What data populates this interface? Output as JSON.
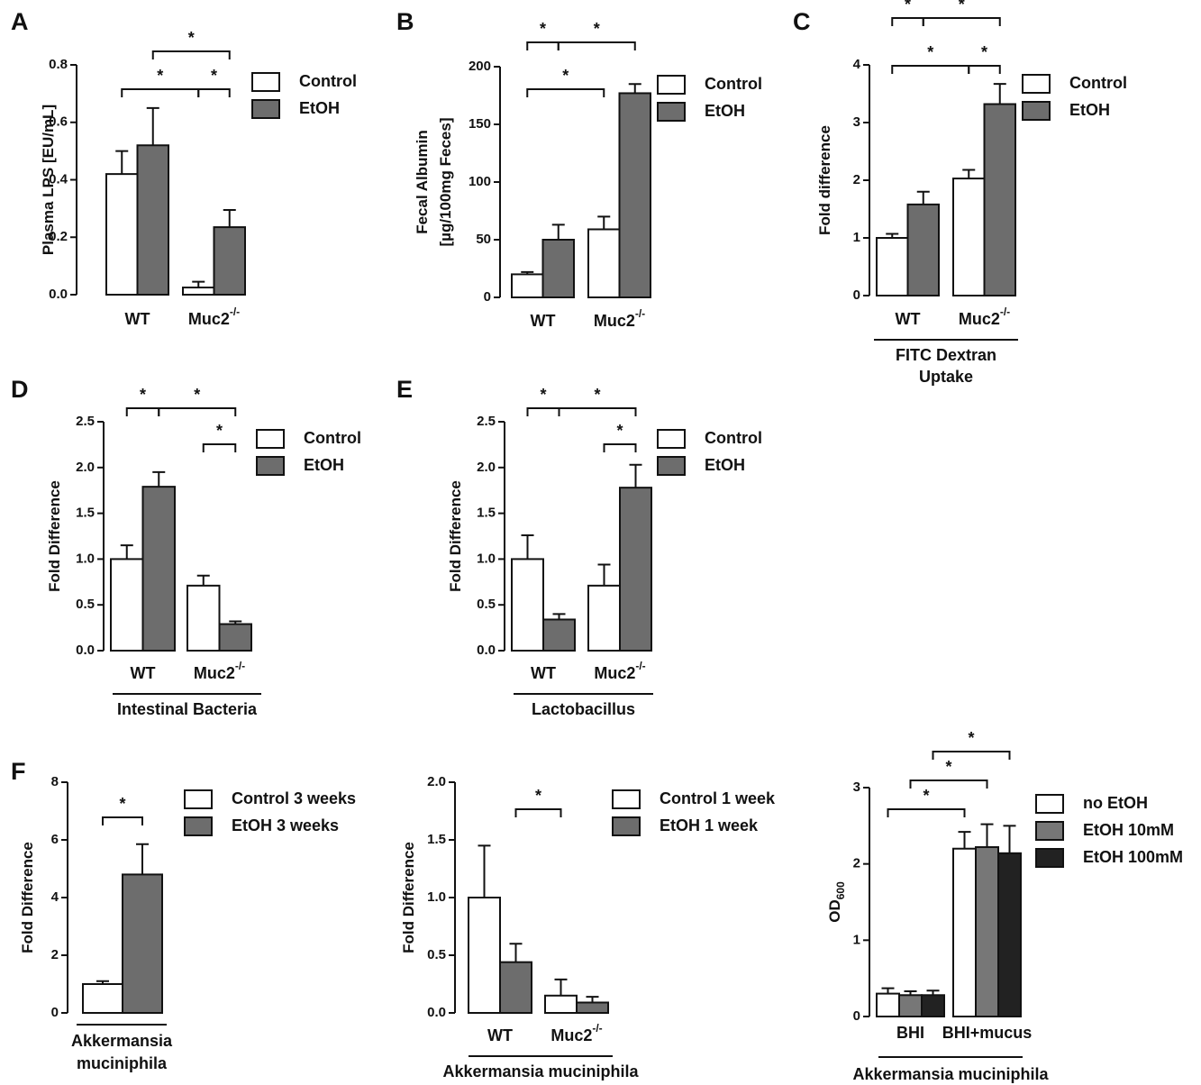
{
  "chart_data": [
    {
      "type": "bar",
      "panel": "A",
      "ylabel": [
        "Plasma LPS [EU/mL]"
      ],
      "categories": [
        "WT",
        "Muc2"
      ],
      "category_sup": [
        null,
        "-/-"
      ],
      "series": [
        {
          "name": "Control",
          "color": "#ffffff",
          "values": [
            0.42,
            0.025
          ],
          "errors": [
            0.08,
            0.02
          ]
        },
        {
          "name": "EtOH",
          "color": "#6d6d6d",
          "values": [
            0.52,
            0.235
          ],
          "errors": [
            0.13,
            0.06
          ]
        }
      ],
      "ylim": [
        0,
        0.8
      ],
      "yticks": [
        {
          "value": 0,
          "label": "0.0"
        },
        0.2,
        0.4,
        0.6,
        0.8
      ],
      "annotations": [
        "*",
        "*",
        "*"
      ]
    },
    {
      "type": "bar",
      "panel": "B",
      "ylabel": [
        "Fecal Albumin",
        "[µg/100mg Feces]"
      ],
      "categories": [
        "WT",
        "Muc2"
      ],
      "category_sup": [
        null,
        "-/-"
      ],
      "series": [
        {
          "name": "Control",
          "color": "#ffffff",
          "values": [
            20,
            59
          ],
          "errors": [
            2,
            11
          ]
        },
        {
          "name": "EtOH",
          "color": "#6d6d6d",
          "values": [
            50,
            177
          ],
          "errors": [
            13,
            8
          ]
        }
      ],
      "ylim": [
        0,
        200
      ],
      "yticks": [
        0,
        50,
        100,
        150,
        200
      ],
      "annotations": [
        "*",
        "*",
        "*"
      ]
    },
    {
      "type": "bar",
      "panel": "C",
      "ylabel": [
        "Fold difference"
      ],
      "categories": [
        "WT",
        "Muc2"
      ],
      "category_sup": [
        null,
        "-/-"
      ],
      "series": [
        {
          "name": "Control",
          "color": "#ffffff",
          "values": [
            1.0,
            2.03
          ],
          "errors": [
            0.07,
            0.15
          ]
        },
        {
          "name": "EtOH",
          "color": "#6d6d6d",
          "values": [
            1.58,
            3.32
          ],
          "errors": [
            0.22,
            0.35
          ]
        }
      ],
      "ylim": [
        0,
        4
      ],
      "yticks": [
        0,
        1,
        2,
        3,
        4
      ],
      "annotations": [
        "*",
        "*",
        "*",
        "*"
      ],
      "group_label": [
        "FITC Dextran",
        "Uptake"
      ]
    },
    {
      "type": "bar",
      "panel": "D",
      "ylabel": [
        "Fold Difference"
      ],
      "categories": [
        "WT",
        "Muc2"
      ],
      "category_sup": [
        null,
        "-/-"
      ],
      "series": [
        {
          "name": "Control",
          "color": "#ffffff",
          "values": [
            1.0,
            0.71
          ],
          "errors": [
            0.15,
            0.11
          ]
        },
        {
          "name": "EtOH",
          "color": "#6d6d6d",
          "values": [
            1.79,
            0.29
          ],
          "errors": [
            0.16,
            0.03
          ]
        }
      ],
      "ylim": [
        0,
        2.5
      ],
      "yticks": [
        {
          "value": 0,
          "label": "0.0"
        },
        0.5,
        {
          "value": 1,
          "label": "1.0"
        },
        1.5,
        {
          "value": 2,
          "label": "2.0"
        },
        2.5
      ],
      "annotations": [
        "*",
        "*",
        "*"
      ],
      "group_label": [
        "Intestinal Bacteria"
      ]
    },
    {
      "type": "bar",
      "panel": "E",
      "ylabel": [
        "Fold Difference"
      ],
      "categories": [
        "WT",
        "Muc2"
      ],
      "category_sup": [
        null,
        "-/-"
      ],
      "series": [
        {
          "name": "Control",
          "color": "#ffffff",
          "values": [
            1.0,
            0.71
          ],
          "errors": [
            0.26,
            0.23
          ]
        },
        {
          "name": "EtOH",
          "color": "#6d6d6d",
          "values": [
            0.34,
            1.78
          ],
          "errors": [
            0.06,
            0.25
          ]
        }
      ],
      "ylim": [
        0,
        2.5
      ],
      "yticks": [
        {
          "value": 0,
          "label": "0.0"
        },
        0.5,
        {
          "value": 1,
          "label": "1.0"
        },
        1.5,
        {
          "value": 2,
          "label": "2.0"
        },
        2.5
      ],
      "annotations": [
        "*",
        "*",
        "*"
      ],
      "group_label": [
        "Lactobacillus"
      ]
    },
    {
      "type": "bar",
      "panel": "F",
      "ylabel": [
        "Fold Difference"
      ],
      "categories": [
        null
      ],
      "series": [
        {
          "name": "Control 3 weeks",
          "color": "#ffffff",
          "values": [
            1.0
          ],
          "errors": [
            0.1
          ]
        },
        {
          "name": "EtOH 3 weeks",
          "color": "#6d6d6d",
          "values": [
            4.8
          ],
          "errors": [
            1.05
          ]
        }
      ],
      "ylim": [
        0,
        8
      ],
      "yticks": [
        0,
        2,
        4,
        6,
        8
      ],
      "annotations": [
        "*"
      ],
      "group_label": [
        "Akkermansia",
        "muciniphila"
      ]
    },
    {
      "type": "bar",
      "ylabel": [
        "Fold Difference"
      ],
      "categories": [
        "WT",
        "Muc2"
      ],
      "category_sup": [
        null,
        "-/-"
      ],
      "series": [
        {
          "name": "Control 1 week",
          "color": "#ffffff",
          "values": [
            1.0,
            0.15
          ],
          "errors": [
            0.45,
            0.14
          ]
        },
        {
          "name": "EtOH 1 week",
          "color": "#6d6d6d",
          "values": [
            0.44,
            0.09
          ],
          "errors": [
            0.16,
            0.05
          ]
        }
      ],
      "ylim": [
        0,
        2
      ],
      "yticks": [
        {
          "value": 0,
          "label": "0.0"
        },
        0.5,
        {
          "value": 1,
          "label": "1.0"
        },
        1.5,
        {
          "value": 2,
          "label": "2.0"
        }
      ],
      "annotations": [
        "*"
      ],
      "group_label": [
        "Akkermansia muciniphila"
      ]
    },
    {
      "type": "bar",
      "ylabel": [
        "OD"
      ],
      "ylabel_sub": "600",
      "categories": [
        "BHI",
        "BHI+mucus"
      ],
      "series": [
        {
          "name": "no EtOH",
          "color": "#ffffff",
          "values": [
            0.3,
            2.2
          ],
          "errors": [
            0.07,
            0.22
          ]
        },
        {
          "name": "EtOH 10mM",
          "color": "#777777",
          "values": [
            0.28,
            2.22
          ],
          "errors": [
            0.05,
            0.3
          ]
        },
        {
          "name": "EtOH 100mM",
          "color": "#222222",
          "values": [
            0.28,
            2.14
          ],
          "errors": [
            0.06,
            0.36
          ]
        }
      ],
      "ylim": [
        0,
        3
      ],
      "yticks": [
        0,
        1,
        2,
        3
      ],
      "annotations": [
        "*",
        "*",
        "*"
      ],
      "group_label": [
        "Akkermansia muciniphila"
      ]
    }
  ]
}
